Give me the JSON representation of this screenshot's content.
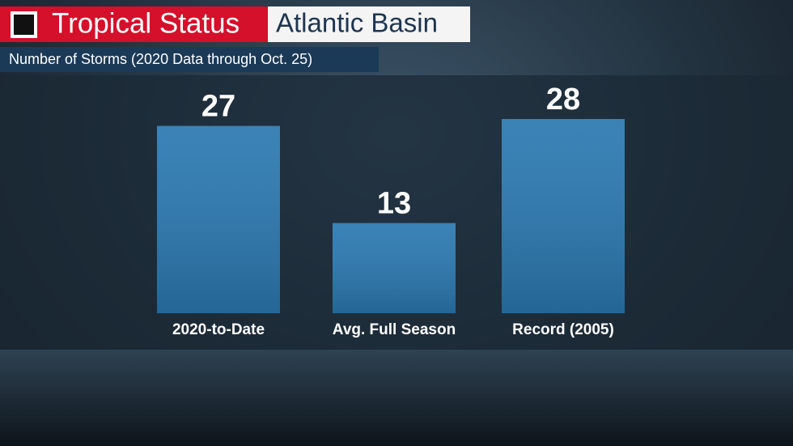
{
  "chart_data": {
    "type": "bar",
    "title": "Tropical Status",
    "subtitle": "Atlantic Basin",
    "caption": "Number of Storms (2020 Data through Oct. 25)",
    "categories": [
      "2020-to-Date",
      "Avg. Full Season",
      "Record (2005)"
    ],
    "values": [
      27,
      13,
      28
    ],
    "color": "#2a78b0"
  }
}
